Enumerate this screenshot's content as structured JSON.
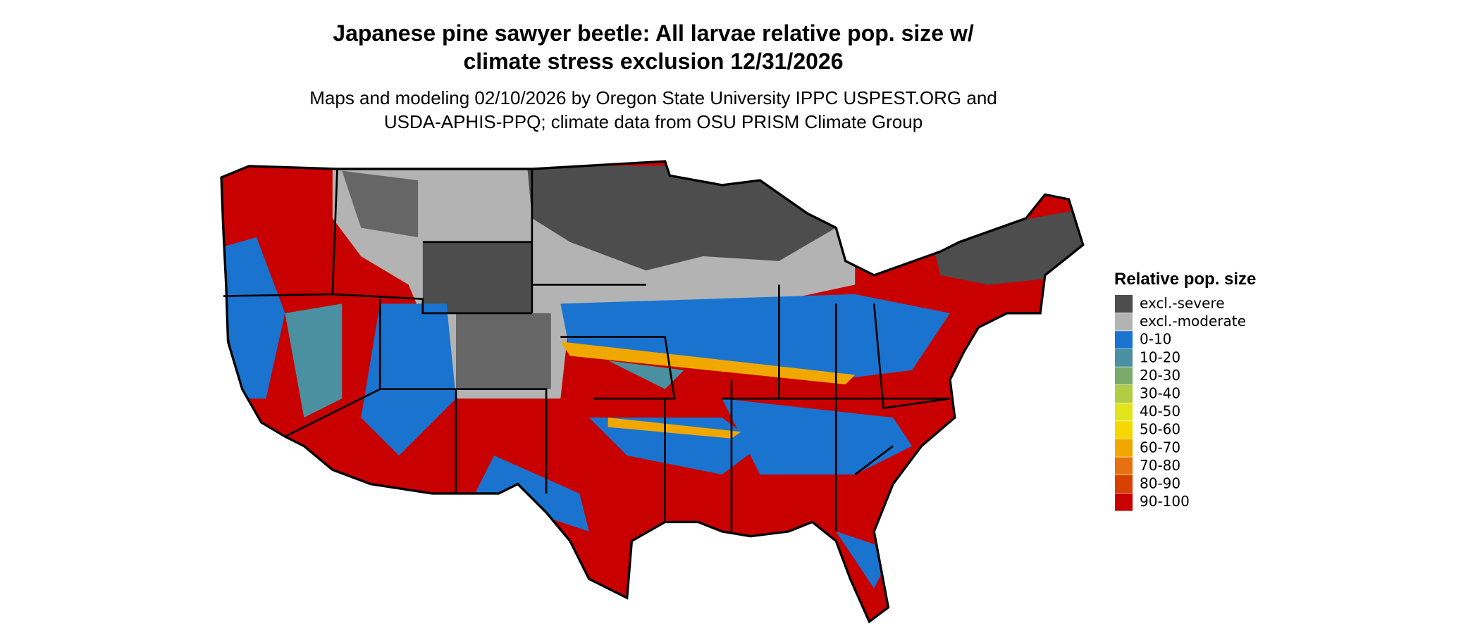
{
  "header": {
    "title": [
      "Japanese pine sawyer beetle: All larvae relative pop. size w/",
      "climate stress exclusion 12/31/2026"
    ],
    "subtitle": [
      "Maps and modeling 02/10/2026 by Oregon State University IPPC USPEST.ORG and",
      "USDA-APHIS-PPQ; climate data from OSU PRISM Climate Group"
    ]
  },
  "legend": {
    "title": "Relative pop. size",
    "items": [
      {
        "label": "excl.-severe",
        "color": "#4d4d4d"
      },
      {
        "label": "excl.-moderate",
        "color": "#b3b3b3"
      },
      {
        "label": "0-10",
        "color": "#1a74cf"
      },
      {
        "label": "10-20",
        "color": "#4a90a0"
      },
      {
        "label": "20-30",
        "color": "#7aab6a"
      },
      {
        "label": "30-40",
        "color": "#b2cc44"
      },
      {
        "label": "40-50",
        "color": "#e0e41c"
      },
      {
        "label": "50-60",
        "color": "#f5d800"
      },
      {
        "label": "60-70",
        "color": "#f0a800"
      },
      {
        "label": "70-80",
        "color": "#e87010"
      },
      {
        "label": "80-90",
        "color": "#d84000"
      },
      {
        "label": "90-100",
        "color": "#c80000"
      }
    ]
  }
}
